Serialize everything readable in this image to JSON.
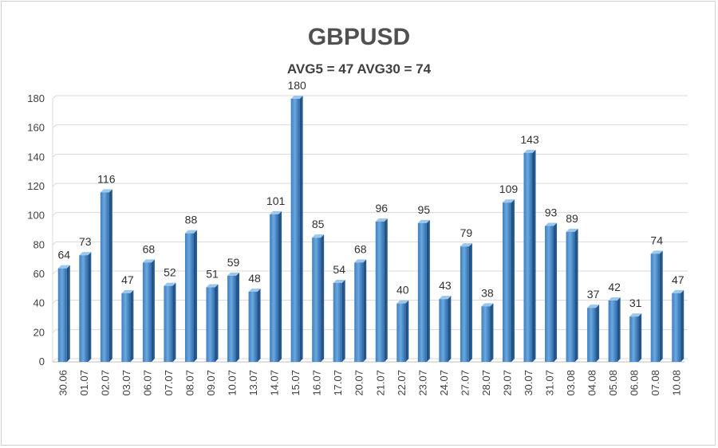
{
  "chart_data": {
    "type": "bar",
    "title": "GBPUSD",
    "subtitle": "AVG5 = 47 AVG30 = 74",
    "categories": [
      "30.06",
      "01.07",
      "02.07",
      "03.07",
      "06.07",
      "07.07",
      "08.07",
      "09.07",
      "10.07",
      "13.07",
      "14.07",
      "15.07",
      "16.07",
      "17.07",
      "20.07",
      "21.07",
      "22.07",
      "23.07",
      "24.07",
      "27.07",
      "28.07",
      "29.07",
      "30.07",
      "31.07",
      "03.08",
      "04.08",
      "05.08",
      "06.08",
      "07.08",
      "10.08"
    ],
    "values": [
      64,
      73,
      116,
      47,
      68,
      52,
      88,
      51,
      59,
      48,
      101,
      180,
      85,
      54,
      68,
      96,
      40,
      95,
      43,
      79,
      38,
      109,
      143,
      93,
      89,
      37,
      42,
      31,
      74,
      47
    ],
    "ylim": [
      0,
      180
    ],
    "yticks": [
      0,
      20,
      40,
      60,
      80,
      100,
      120,
      140,
      160,
      180
    ],
    "grid": true,
    "xlabel": "",
    "ylabel": "",
    "bar_color": "#5b9bd5"
  }
}
